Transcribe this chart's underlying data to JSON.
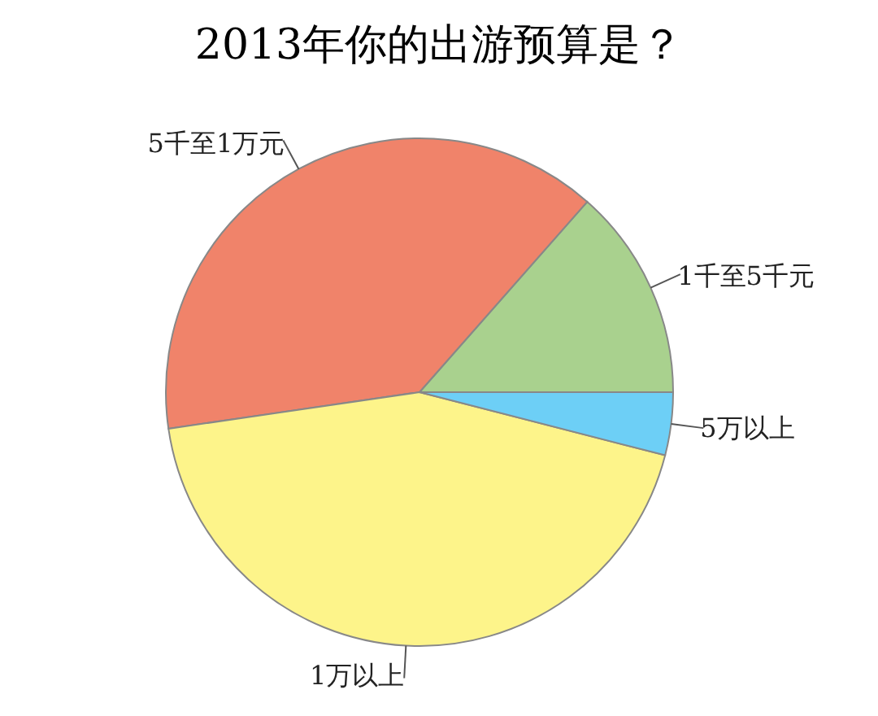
{
  "chart_data": {
    "type": "pie",
    "title": "2013年你的出游预算是？",
    "categories": [
      "1千至5千元",
      "5千至1万元",
      "1万以上",
      "5万以上"
    ],
    "values": [
      13.5,
      38.8,
      43.7,
      4
    ],
    "colors": [
      "#a9d18e",
      "#f0836a",
      "#fdf48a",
      "#6dcff6"
    ],
    "legend": false
  }
}
